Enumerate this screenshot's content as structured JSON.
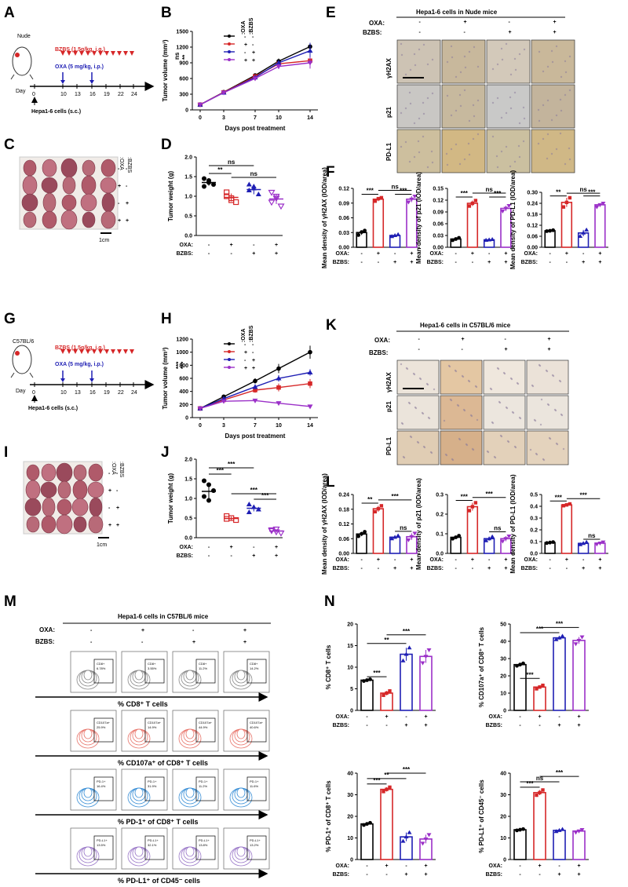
{
  "panels": {
    "A": "A",
    "B": "B",
    "C": "C",
    "D": "D",
    "E": "E",
    "F": "F",
    "G": "G",
    "H": "H",
    "I": "I",
    "J": "J",
    "K": "K",
    "L": "L",
    "M": "M",
    "N": "N"
  },
  "colors": {
    "ctrl": "#000000",
    "oxa": "#d62728",
    "bzbs": "#1f1fb4",
    "combo": "#9b30c8"
  },
  "labels": {
    "oxa": "OXA:",
    "bzbs": "BZBS:",
    "plus": "+",
    "minus": "-",
    "legend_oxa": ":OXA",
    "legend_bzbs": ":BZBS",
    "scale_1cm": "1cm",
    "day": "Day",
    "days_post": "Days post treatment",
    "tumor_volume": "Tumor volume (mm³)",
    "tumor_weight": "Tumor weight (g)",
    "yh2ax": "γH2AX",
    "p21": "p21",
    "pdl1": "PD-L1",
    "density_yh2ax": "Mean density of γH2AX (IOD/area)",
    "density_p21": "Mean density of p21 (IOD/area)",
    "density_pdl1": "Mean density of PD-L1 (IOD/area)",
    "ns": "ns",
    "one_star": "*",
    "two_star": "**",
    "three_star": "***"
  },
  "schemes": {
    "A": {
      "mouse": "Nude",
      "bzbs_dose": "BZBS (1.5g/kg, i.g.)",
      "oxa_dose": "OXA (5 mg/kg, i.p.)",
      "days": [
        "0",
        "10",
        "13",
        "16",
        "19",
        "22",
        "24"
      ],
      "cells": "Hepa1-6 cells (s.c.)"
    },
    "G": {
      "mouse": "C57BL/6",
      "bzbs_dose": "BZBS (1.5g/kg, i.g.)",
      "oxa_dose": "OXA (5 mg/kg, i.p.)",
      "days": [
        "0",
        "10",
        "13",
        "16",
        "19",
        "22",
        "24"
      ],
      "cells": "Hepa1-6 cells (s.c.)"
    }
  },
  "titles": {
    "E": "Hepa1-6 cells in Nude mice",
    "K": "Hepa1-6 cells in C57BL/6 mice",
    "M": "Hepa1-6 cells in C57BL/6 mice"
  },
  "flow": {
    "rows": [
      {
        "title": "% CD8⁺ T cells",
        "gate": [
          "CD8+",
          "CD8+",
          "CD8+",
          "CD8+"
        ],
        "pct": [
          "6.78%",
          "3.55%",
          "11.2%",
          "14.2%"
        ],
        "color": "#888888"
      },
      {
        "title": "% CD107a⁺ of CD8⁺ T cells",
        "gate": [
          "CD107a+",
          "CD107a+",
          "CD107a+",
          "CD107a+"
        ],
        "pct": [
          "25.9%",
          "14.9%",
          "44.9%",
          "40.6%"
        ],
        "color": "#e8746a"
      },
      {
        "title": "% PD-1⁺ of CD8⁺ T cells",
        "gate": [
          "PD-1+",
          "PD-1+",
          "PD-1+",
          "PD-1+"
        ],
        "pct": [
          "16.4%",
          "31.9%",
          "11.2%",
          "11.6%"
        ],
        "color": "#3a8fd6"
      },
      {
        "title": "% PD-L1⁺ of CD45⁻ cells",
        "gate": [
          "PD-L1+",
          "PD-L1+",
          "PD-L1+",
          "PD-L1+"
        ],
        "pct": [
          "13.5%",
          "32.1%",
          "13.8%",
          "13.2%"
        ],
        "color": "#9a78c8"
      }
    ]
  },
  "chart_data": [
    {
      "id": "B",
      "type": "line",
      "x": [
        0,
        3,
        7,
        10,
        14
      ],
      "xlabel": "Days post treatment",
      "ylabel": "Tumor volume (mm³)",
      "ylim": [
        0,
        1500
      ],
      "yticks": [
        0,
        300,
        600,
        900,
        1200,
        1500
      ],
      "series": [
        {
          "name": "Control",
          "values": [
            100,
            340,
            660,
            930,
            1210
          ],
          "err": [
            15,
            20,
            30,
            50,
            70
          ]
        },
        {
          "name": "OXA",
          "values": [
            100,
            335,
            640,
            880,
            940
          ],
          "err": [
            15,
            20,
            30,
            50,
            60
          ]
        },
        {
          "name": "BZBS",
          "values": [
            100,
            330,
            620,
            900,
            1130
          ],
          "err": [
            15,
            20,
            30,
            50,
            150
          ]
        },
        {
          "name": "OXA+BZBS",
          "values": [
            100,
            330,
            600,
            830,
            900
          ],
          "err": [
            15,
            20,
            30,
            50,
            110
          ]
        }
      ]
    },
    {
      "id": "D",
      "type": "scatter",
      "ylabel": "Tumor weight (g)",
      "ylim": [
        0,
        2.0
      ],
      "yticks": [
        "0.0",
        "0.5",
        "1.0",
        "1.5",
        "2.0"
      ],
      "groups": [
        {
          "name": "Control",
          "points": [
            1.45,
            1.4,
            1.3,
            1.25,
            1.35
          ],
          "mean": 1.35,
          "sd": 0.08
        },
        {
          "name": "OXA",
          "points": [
            1.1,
            0.95,
            0.85,
            1.0,
            0.9
          ],
          "mean": 0.97,
          "sd": 0.1
        },
        {
          "name": "BZBS",
          "points": [
            1.3,
            1.2,
            1.05,
            1.15,
            1.25
          ],
          "mean": 1.17,
          "sd": 0.12
        },
        {
          "name": "OXA+BZBS",
          "points": [
            1.1,
            0.95,
            0.75,
            0.85,
            1.0
          ],
          "mean": 0.93,
          "sd": 0.13
        }
      ]
    },
    {
      "id": "F1",
      "type": "bar",
      "ylabel": "Mean density of γH2AX (IOD/area)",
      "ylim": [
        0,
        0.12
      ],
      "yticks": [
        "0.00",
        "0.03",
        "0.06",
        "0.09",
        "0.12"
      ],
      "values": [
        0.03,
        0.098,
        0.024,
        0.098
      ],
      "points": [
        [
          0.025,
          0.031,
          0.034
        ],
        [
          0.094,
          0.099,
          0.101
        ],
        [
          0.022,
          0.024,
          0.026
        ],
        [
          0.092,
          0.098,
          0.104
        ]
      ]
    },
    {
      "id": "F2",
      "type": "bar",
      "ylabel": "Mean density of p21 (IOD/area)",
      "ylim": [
        0,
        0.15
      ],
      "yticks": [
        "0.00",
        "0.03",
        "0.06",
        "0.09",
        "0.12",
        "0.15"
      ],
      "values": [
        0.021,
        0.112,
        0.019,
        0.099
      ],
      "points": [
        [
          0.018,
          0.021,
          0.024
        ],
        [
          0.105,
          0.112,
          0.119
        ],
        [
          0.018,
          0.019,
          0.02
        ],
        [
          0.092,
          0.099,
          0.106
        ]
      ]
    },
    {
      "id": "F3",
      "type": "bar",
      "ylabel": "Mean density of PD-L1 (IOD/area)",
      "ylim": [
        0,
        0.3
      ],
      "yticks": [
        "0.00",
        "0.06",
        "0.12",
        "0.18",
        "0.24",
        "0.30"
      ],
      "values": [
        0.09,
        0.245,
        0.078,
        0.232
      ],
      "points": [
        [
          0.088,
          0.09,
          0.093
        ],
        [
          0.22,
          0.245,
          0.27
        ],
        [
          0.06,
          0.078,
          0.095
        ],
        [
          0.22,
          0.232,
          0.24
        ]
      ]
    },
    {
      "id": "H",
      "type": "line",
      "x": [
        0,
        3,
        7,
        10,
        14
      ],
      "xlabel": "Days post treatment",
      "ylabel": "Tumor volume (mm³)",
      "ylim": [
        0,
        1200
      ],
      "yticks": [
        0,
        200,
        400,
        600,
        800,
        1000,
        1200
      ],
      "series": [
        {
          "name": "Control",
          "values": [
            140,
            320,
            560,
            750,
            1000
          ],
          "err": [
            15,
            25,
            40,
            70,
            100
          ]
        },
        {
          "name": "OXA",
          "values": [
            140,
            270,
            420,
            460,
            520
          ],
          "err": [
            15,
            20,
            40,
            60,
            70
          ]
        },
        {
          "name": "BZBS",
          "values": [
            140,
            290,
            470,
            600,
            690
          ],
          "err": [
            15,
            20,
            40,
            50,
            50
          ]
        },
        {
          "name": "OXA+BZBS",
          "values": [
            140,
            250,
            260,
            220,
            170
          ],
          "err": [
            15,
            20,
            25,
            20,
            20
          ]
        }
      ]
    },
    {
      "id": "J",
      "type": "scatter",
      "ylabel": "Tumor weight (g)",
      "ylim": [
        0,
        2.0
      ],
      "yticks": [
        "0.0",
        "0.5",
        "1.0",
        "1.5",
        "2.0"
      ],
      "groups": [
        {
          "name": "Control",
          "points": [
            1.45,
            1.35,
            1.2,
            1.05,
            0.95
          ],
          "mean": 1.18,
          "sd": 0.2
        },
        {
          "name": "OXA",
          "points": [
            0.55,
            0.5,
            0.45,
            0.48
          ],
          "mean": 0.49,
          "sd": 0.05
        },
        {
          "name": "BZBS",
          "points": [
            0.85,
            0.78,
            0.72,
            0.65
          ],
          "mean": 0.75,
          "sd": 0.08
        },
        {
          "name": "OXA+BZBS",
          "points": [
            0.2,
            0.15,
            0.12,
            0.18,
            0.22
          ],
          "mean": 0.17,
          "sd": 0.04
        }
      ]
    },
    {
      "id": "L1",
      "type": "bar",
      "ylabel": "Mean density of γH2AX (IOD/area)",
      "ylim": [
        0,
        0.24
      ],
      "yticks": [
        "0.00",
        "0.06",
        "0.12",
        "0.18",
        "0.24"
      ],
      "values": [
        0.079,
        0.182,
        0.066,
        0.068
      ],
      "points": [
        [
          0.07,
          0.08,
          0.088
        ],
        [
          0.17,
          0.182,
          0.194
        ],
        [
          0.06,
          0.066,
          0.072
        ],
        [
          0.055,
          0.068,
          0.082
        ]
      ]
    },
    {
      "id": "L2",
      "type": "bar",
      "ylabel": "Mean density of p21 (IOD/area)",
      "ylim": [
        0,
        0.3
      ],
      "yticks": [
        "0.0",
        "0.1",
        "0.2",
        "0.3"
      ],
      "values": [
        0.082,
        0.238,
        0.075,
        0.075
      ],
      "points": [
        [
          0.075,
          0.082,
          0.09
        ],
        [
          0.218,
          0.238,
          0.258
        ],
        [
          0.065,
          0.075,
          0.085
        ],
        [
          0.062,
          0.075,
          0.088
        ]
      ]
    },
    {
      "id": "L3",
      "type": "bar",
      "ylabel": "Mean density of PD-L1 (IOD/area)",
      "ylim": [
        0,
        0.5
      ],
      "yticks": [
        "0.0",
        "0.1",
        "0.2",
        "0.3",
        "0.4",
        "0.5"
      ],
      "values": [
        0.092,
        0.412,
        0.085,
        0.087
      ],
      "points": [
        [
          0.088,
          0.092,
          0.096
        ],
        [
          0.405,
          0.412,
          0.42
        ],
        [
          0.075,
          0.085,
          0.095
        ],
        [
          0.078,
          0.087,
          0.096
        ]
      ]
    },
    {
      "id": "N1",
      "type": "bar",
      "ylabel": "% CD8⁺ T cells",
      "ylim": [
        0,
        20
      ],
      "yticks": [
        "0",
        "5",
        "10",
        "15",
        "20"
      ],
      "values": [
        7.0,
        4.0,
        13.0,
        12.5
      ],
      "points": [
        [
          6.8,
          7.0,
          7.2
        ],
        [
          3.5,
          4.0,
          4.5
        ],
        [
          11.5,
          13.0,
          14.5
        ],
        [
          11.0,
          12.5,
          14.0
        ]
      ]
    },
    {
      "id": "N2",
      "type": "bar",
      "ylabel": "% CD107a⁺ of CD8⁺ T cells",
      "ylim": [
        0,
        50
      ],
      "yticks": [
        "0",
        "10",
        "20",
        "30",
        "40",
        "50"
      ],
      "values": [
        26.5,
        13.5,
        42.0,
        40.5
      ],
      "points": [
        [
          25.8,
          26.5,
          27.2
        ],
        [
          12.5,
          13.5,
          14.5
        ],
        [
          41.0,
          42.0,
          43.0
        ],
        [
          38.5,
          40.5,
          42.5
        ]
      ]
    },
    {
      "id": "N3",
      "type": "bar",
      "ylabel": "% PD-1⁺ of CD8⁺ T cells",
      "ylim": [
        0,
        40
      ],
      "yticks": [
        "0",
        "10",
        "20",
        "30",
        "40"
      ],
      "values": [
        16.5,
        32.5,
        10.5,
        9.5
      ],
      "points": [
        [
          16.0,
          16.5,
          17.0
        ],
        [
          31.5,
          32.5,
          33.5
        ],
        [
          8.5,
          10.5,
          12.5
        ],
        [
          7.5,
          9.5,
          11.5
        ]
      ]
    },
    {
      "id": "N4",
      "type": "bar",
      "ylabel": "% PD-L1⁺ of CD45⁻ cells",
      "ylim": [
        0,
        40
      ],
      "yticks": [
        "0",
        "10",
        "20",
        "30",
        "40"
      ],
      "values": [
        13.8,
        31.0,
        13.5,
        13.2
      ],
      "points": [
        [
          13.5,
          13.8,
          14.1
        ],
        [
          29.8,
          31.0,
          32.2
        ],
        [
          13.0,
          13.5,
          14.0
        ],
        [
          12.6,
          13.2,
          13.8
        ]
      ]
    }
  ]
}
